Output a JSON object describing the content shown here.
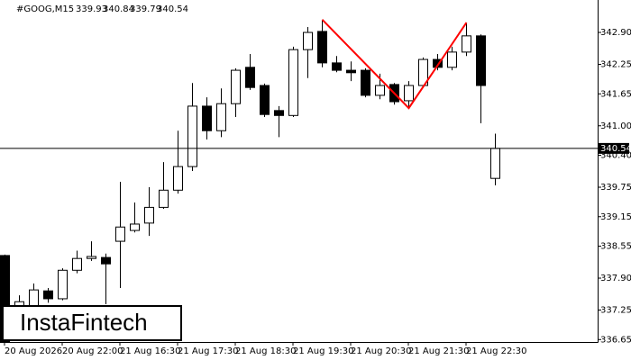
{
  "chart_data": {
    "type": "candlestick",
    "title": "#GOOG,M15",
    "watermark": "InstaFintech",
    "categories": [
      "20 Aug 2026",
      null,
      null,
      null,
      "20 Aug 22:00",
      null,
      null,
      null,
      "21 Aug 16:30",
      null,
      null,
      null,
      "21 Aug 17:30",
      null,
      null,
      null,
      "21 Aug 18:30",
      null,
      null,
      null,
      "21 Aug 19:30",
      null,
      null,
      null,
      "21 Aug 20:30",
      null,
      null,
      null,
      "21 Aug 21:30",
      null,
      null,
      null,
      "21 Aug 22:30",
      null,
      null
    ],
    "open": [
      338.36,
      337.3,
      337.24,
      337.64,
      337.48,
      338.06,
      338.3,
      338.32,
      338.65,
      338.87,
      339.02,
      339.34,
      339.69,
      340.17,
      341.4,
      340.9,
      341.45,
      342.19,
      341.82,
      341.31,
      341.21,
      342.55,
      342.92,
      342.28,
      342.13,
      342.13,
      341.62,
      341.84,
      341.51,
      341.82,
      342.35,
      342.19,
      342.5,
      342.83,
      339.93
    ],
    "high": [
      338.38,
      337.55,
      337.79,
      337.7,
      338.1,
      338.46,
      338.65,
      338.4,
      339.86,
      339.44,
      339.75,
      340.26,
      340.9,
      341.87,
      341.58,
      341.76,
      342.17,
      342.46,
      341.86,
      341.4,
      342.61,
      343.01,
      343.16,
      342.42,
      342.31,
      342.17,
      342.06,
      341.87,
      341.91,
      342.39,
      342.46,
      342.61,
      343.1,
      342.86,
      340.84
    ],
    "low": [
      336.6,
      337.15,
      337.2,
      337.4,
      337.45,
      338.0,
      338.25,
      337.37,
      337.7,
      338.83,
      338.76,
      339.31,
      339.62,
      340.08,
      340.72,
      340.77,
      341.18,
      341.73,
      341.18,
      340.77,
      341.18,
      341.97,
      342.19,
      342.09,
      341.91,
      341.58,
      341.54,
      341.43,
      341.36,
      341.78,
      342.13,
      342.13,
      342.42,
      341.05,
      339.79
    ],
    "close": [
      336.6,
      337.42,
      337.66,
      337.48,
      338.06,
      338.3,
      338.34,
      338.19,
      338.94,
      339.0,
      339.34,
      339.69,
      340.17,
      341.4,
      340.9,
      341.45,
      342.13,
      341.78,
      341.23,
      341.21,
      342.55,
      342.9,
      342.28,
      342.13,
      342.08,
      341.62,
      341.82,
      341.49,
      341.82,
      342.35,
      342.19,
      342.5,
      342.83,
      341.82,
      340.54
    ],
    "ylim": [
      336.6,
      343.56
    ],
    "yticks": [
      {
        "value": 342.9,
        "label": "342.90"
      },
      342.25,
      341.65,
      {
        "value": 341,
        "label": "341.00"
      },
      {
        "value": 340.4,
        "label": "340.40"
      },
      339.75,
      339.15,
      338.55,
      {
        "value": 337.9,
        "label": "337.90"
      },
      337.25,
      336.65
    ],
    "up_color": "#ffffff",
    "down_color": "#000000",
    "line_color": "#000000",
    "pattern_color": "#ff0000"
  }
}
